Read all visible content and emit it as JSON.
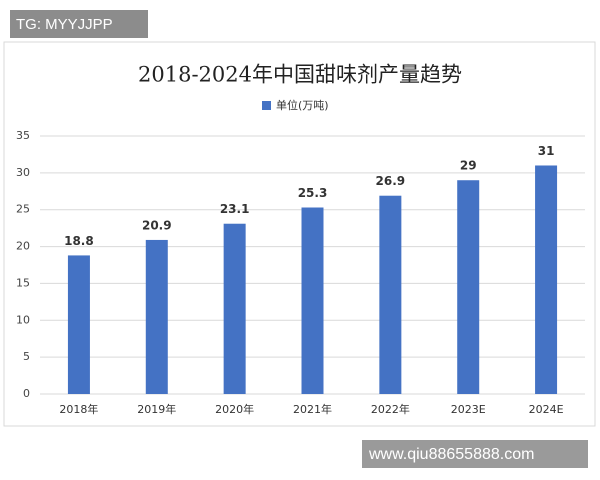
{
  "watermark_top": "TG: MYYJJPP",
  "watermark_bottom": "www.qiu88655888.com",
  "chart_data": {
    "type": "bar",
    "title": "2018-2024年中国甜味剂产量趋势",
    "categories": [
      "2018年",
      "2019年",
      "2020年",
      "2021年",
      "2022年",
      "2023E",
      "2024E"
    ],
    "series": [
      {
        "name": "单位(万吨)",
        "color": "#4472c4",
        "values": [
          18.8,
          20.9,
          23.1,
          25.3,
          26.9,
          29,
          31
        ]
      }
    ],
    "ylim": [
      0,
      35
    ],
    "yticks": [
      0,
      5,
      10,
      15,
      20,
      25,
      30,
      35
    ],
    "grid": true,
    "legend": "top"
  }
}
